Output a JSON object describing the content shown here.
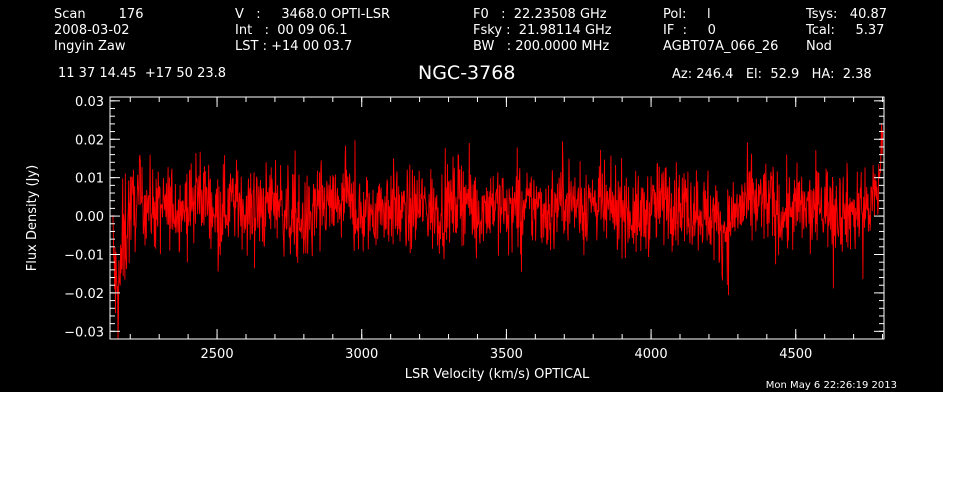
{
  "header": {
    "row1": {
      "scan": "Scan        176",
      "vel": "V   :     3468.0 OPTI-LSR",
      "f0": "F0   :  22.23508 GHz",
      "pol": "Pol:     l",
      "tsys": "Tsys:   40.87"
    },
    "row2": {
      "date": "2008-03-02",
      "int": "Int   :  00 09 06.1",
      "fsky": "Fsky :  21.98114 GHz",
      "if": "IF  :     0",
      "tcal": "Tcal:     5.37"
    },
    "row3": {
      "observer": "Ingyin Zaw",
      "lst": "LST : +14 00 03.7",
      "bw": "BW   : 200.0000 MHz",
      "project": "AGBT07A_066_26",
      "proc": "Nod"
    },
    "coords": "11 37 14.45  +17 50 23.8",
    "source": "NGC-3768",
    "azelha": "Az: 246.4   El:  52.9   HA:  2.38",
    "timestamp": "Mon May  6 22:26:19 2013"
  },
  "colors": {
    "background": "#000000",
    "axes": "#ffffff",
    "series": "#ff0000"
  },
  "chart_data": {
    "type": "line",
    "title": "NGC-3768",
    "xlabel": "LSR Velocity (km/s) OPTICAL",
    "ylabel": "Flux Density (Jy)",
    "xlim": [
      2130,
      4805
    ],
    "ylim": [
      -0.032,
      0.031
    ],
    "xticks": [
      2500,
      3000,
      3500,
      4000,
      4500
    ],
    "xtick_labels": [
      "2500",
      "3000",
      "3500",
      "4000",
      "4500"
    ],
    "yticks": [
      -0.03,
      -0.02,
      -0.01,
      0.0,
      0.01,
      0.02,
      0.03
    ],
    "ytick_labels": [
      "−0.03",
      "−0.02",
      "−0.01",
      "0.00",
      "0.01",
      "0.02",
      "0.03"
    ],
    "x_minor_step": 100,
    "y_minor_step": 0.002,
    "grid": false,
    "series": [
      {
        "x": [
          2140,
          2150,
          2160,
          2170,
          2180,
          2200,
          2250,
          2300,
          2350,
          2400,
          2450,
          2500,
          2550,
          2600,
          2650,
          2700,
          2750,
          2800,
          2850,
          2900,
          2950,
          3000,
          3050,
          3100,
          3150,
          3200,
          3250,
          3300,
          3350,
          3400,
          3450,
          3500,
          3550,
          3600,
          3650,
          3700,
          3750,
          3800,
          3850,
          3900,
          3950,
          4000,
          4050,
          4100,
          4150,
          4200,
          4250,
          4300,
          4350,
          4400,
          4450,
          4500,
          4550,
          4600,
          4650,
          4700,
          4750,
          4770,
          4790,
          4800
        ],
        "y": [
          -0.008,
          -0.019,
          -0.022,
          -0.012,
          -0.004,
          0.002,
          0.004,
          0.001,
          0.003,
          0.002,
          0.006,
          0.001,
          0.004,
          0.002,
          0.001,
          0.005,
          0.0,
          -0.002,
          0.003,
          0.002,
          0.004,
          -0.001,
          0.002,
          0.003,
          0.0,
          0.003,
          0.001,
          0.002,
          0.006,
          0.001,
          0.004,
          0.002,
          0.001,
          0.003,
          0.001,
          0.006,
          0.002,
          0.004,
          0.001,
          0.003,
          -0.001,
          0.002,
          0.004,
          0.003,
          0.002,
          0.001,
          -0.004,
          0.002,
          0.003,
          0.004,
          0.0,
          0.002,
          0.001,
          0.003,
          0.002,
          0.001,
          0.002,
          0.004,
          0.009,
          0.027
        ],
        "noise_rms": 0.0055,
        "channels": 1800
      }
    ]
  }
}
